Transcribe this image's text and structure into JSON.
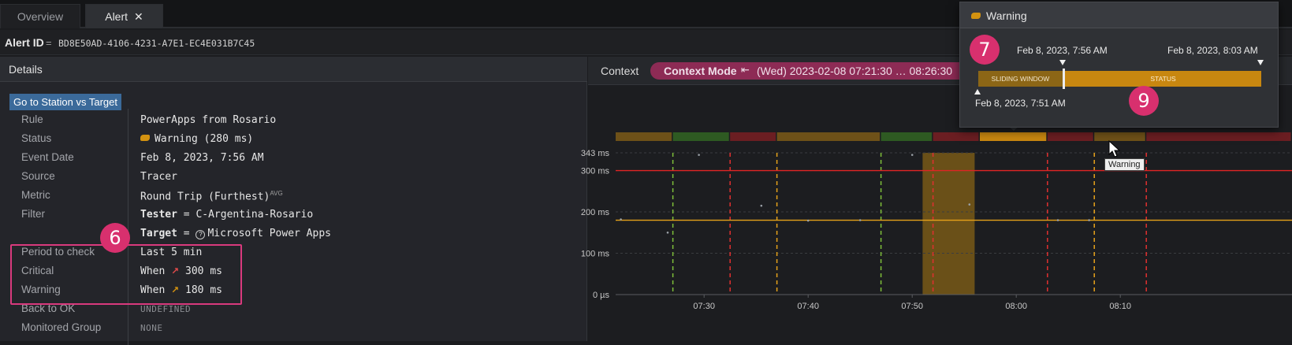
{
  "tabs": [
    {
      "label": "Overview",
      "active": false
    },
    {
      "label": "Alert",
      "active": true,
      "close_icon": "close-icon"
    }
  ],
  "alert_id": {
    "label": "Alert ID",
    "separator": "=",
    "value": "BD8E50AD-4106-4231-A7E1-EC4E031B7C45"
  },
  "details": {
    "title": "Details",
    "goto_button": "Go to Station vs Target",
    "rows": {
      "rule": {
        "key": "Rule",
        "value": "PowerApps from Rosario"
      },
      "status": {
        "key": "Status",
        "value": "Warning (280 ms)",
        "icon": "warning-pill-icon",
        "color": "#d39210"
      },
      "event_date": {
        "key": "Event Date",
        "value": "Feb 8, 2023, 7:56 AM"
      },
      "source": {
        "key": "Source",
        "value": "Tracer"
      },
      "metric": {
        "key": "Metric",
        "value": "Round Trip (Furthest)",
        "suffix": "AVG"
      },
      "filter": {
        "key": "Filter",
        "field": "Tester",
        "op": "=",
        "value": "C-Argentina-Rosario"
      },
      "target": {
        "field": "Target",
        "op": "=",
        "value": "Microsoft Power Apps",
        "icon": "help-circle-icon"
      },
      "period": {
        "key": "Period to check",
        "value": "Last 5 min"
      },
      "critical": {
        "key": "Critical",
        "prefix": "When",
        "value": "300 ms",
        "icon": "trend-up-arrow-icon",
        "color": "#e04a4a"
      },
      "warning": {
        "key": "Warning",
        "prefix": "When",
        "value": "180 ms",
        "icon": "trend-up-arrow-icon",
        "color": "#d39210"
      },
      "back_to_ok": {
        "key": "Back to OK",
        "value": "UNDEFINED"
      },
      "monitored_group": {
        "key": "Monitored Group",
        "value": "NONE"
      }
    },
    "callout": "6"
  },
  "context": {
    "title": "Context",
    "mode_label": "Context Mode",
    "mode_icon": "jump-to-start-icon",
    "range_text": "(Wed) 2023-02-08 07:21:30  …  08:26:30"
  },
  "chart_data": {
    "type": "line",
    "x_start": "07:21:30",
    "x_end": "08:26:30",
    "x_ticks": [
      "07:30",
      "07:40",
      "07:50",
      "08:00",
      "08:10"
    ],
    "y_ticks": [
      "343 ms",
      "300 ms",
      "200 ms",
      "100 ms",
      "0 µs"
    ],
    "y_tick_values": [
      343,
      300,
      200,
      100,
      0
    ],
    "ylim": [
      0,
      343
    ],
    "thresholds": [
      {
        "name": "Critical",
        "value": 300,
        "color": "#e02424"
      },
      {
        "name": "Warning",
        "value": 180,
        "color": "#e6a21a"
      }
    ],
    "status_segments": [
      {
        "start": "07:21:30",
        "end": "07:27:00",
        "color": "#6e5118"
      },
      {
        "start": "07:27:00",
        "end": "07:32:30",
        "color": "#2e5a22"
      },
      {
        "start": "07:32:30",
        "end": "07:37:00",
        "color": "#6b1e22"
      },
      {
        "start": "07:37:00",
        "end": "07:47:00",
        "color": "#6e5118"
      },
      {
        "start": "07:47:00",
        "end": "07:52:00",
        "color": "#2e5a22"
      },
      {
        "start": "07:52:00",
        "end": "07:56:30",
        "color": "#6b1e22"
      },
      {
        "start": "07:56:30",
        "end": "08:03:00",
        "color": "#c88710"
      },
      {
        "start": "08:03:00",
        "end": "08:07:30",
        "color": "#6b1e22"
      },
      {
        "start": "08:07:30",
        "end": "08:12:30",
        "color": "#6e5118"
      },
      {
        "start": "08:12:30",
        "end": "08:26:30",
        "color": "#6b1e22"
      }
    ],
    "event_lines": [
      {
        "time": "07:27:00",
        "color": "#7fbf3a"
      },
      {
        "time": "07:32:30",
        "color": "#e03030"
      },
      {
        "time": "07:37:00",
        "color": "#e6a21a"
      },
      {
        "time": "07:47:00",
        "color": "#7fbf3a"
      },
      {
        "time": "07:52:00",
        "color": "#e03030"
      },
      {
        "time": "08:03:00",
        "color": "#e03030"
      },
      {
        "time": "08:07:30",
        "color": "#e6a21a"
      },
      {
        "time": "08:12:30",
        "color": "#e03030"
      }
    ],
    "highlight_window": {
      "start": "07:51:00",
      "end": "07:56:00",
      "color": "#8c6616"
    },
    "points": [
      {
        "x": "07:22:00",
        "y": 182
      },
      {
        "x": "07:26:30",
        "y": 150
      },
      {
        "x": "07:29:30",
        "y": 338
      },
      {
        "x": "07:35:30",
        "y": 215
      },
      {
        "x": "07:40:00",
        "y": 179
      },
      {
        "x": "07:45:00",
        "y": 180
      },
      {
        "x": "07:50:00",
        "y": 338
      },
      {
        "x": "07:55:30",
        "y": 218
      },
      {
        "x": "08:04:00",
        "y": 180
      },
      {
        "x": "08:07:00",
        "y": 180
      }
    ],
    "hover_tooltip": "Warning"
  },
  "popup": {
    "title": "Warning",
    "icon": "warning-pill-icon",
    "event_time": "Feb 8, 2023, 7:56 AM",
    "end_time": "Feb 8, 2023, 8:03 AM",
    "window_start": "Feb 8, 2023, 7:51 AM",
    "sliding_window_label": "SLIDING WINDOW",
    "status_label": "STATUS",
    "callout_left": "7",
    "callout_right": "9"
  }
}
